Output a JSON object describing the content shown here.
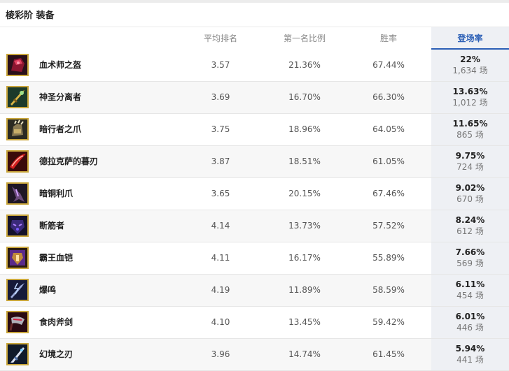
{
  "section_title": "棱彩阶 装备",
  "columns": {
    "avg_place": "平均排名",
    "first_rate": "第一名比例",
    "win_rate": "胜率",
    "pick_rate": "登场率"
  },
  "colors": {
    "accent": "#2b5fb6",
    "icon_border": "#c8a53b",
    "highlight_column_bg": "#eef0f4"
  },
  "items": [
    {
      "name": "血术师之盔",
      "icon": "crimson-helm-icon",
      "avg": "3.57",
      "first": "21.36%",
      "win": "67.44%",
      "pick": "22%",
      "games": "1,634 场"
    },
    {
      "name": "神圣分离者",
      "icon": "golden-sword-icon",
      "avg": "3.69",
      "first": "16.70%",
      "win": "66.30%",
      "pick": "13.63%",
      "games": "1,012 场"
    },
    {
      "name": "暗行者之爪",
      "icon": "claw-gauntlet-icon",
      "avg": "3.75",
      "first": "18.96%",
      "win": "64.05%",
      "pick": "11.65%",
      "games": "865 场"
    },
    {
      "name": "德拉克萨的暮刃",
      "icon": "red-blade-icon",
      "avg": "3.87",
      "first": "18.51%",
      "win": "61.05%",
      "pick": "9.75%",
      "games": "724 场"
    },
    {
      "name": "暗铜利爪",
      "icon": "dark-talon-icon",
      "avg": "3.65",
      "first": "20.15%",
      "win": "67.46%",
      "pick": "9.02%",
      "games": "670 场"
    },
    {
      "name": "断筋者",
      "icon": "purple-mask-icon",
      "avg": "4.14",
      "first": "13.73%",
      "win": "57.52%",
      "pick": "8.24%",
      "games": "612 场"
    },
    {
      "name": "霸王血铠",
      "icon": "purple-armor-icon",
      "avg": "4.11",
      "first": "16.17%",
      "win": "55.89%",
      "pick": "7.66%",
      "games": "569 场"
    },
    {
      "name": "爆鸣",
      "icon": "lightning-blade-icon",
      "avg": "4.19",
      "first": "11.89%",
      "win": "58.59%",
      "pick": "6.11%",
      "games": "454 场"
    },
    {
      "name": "食肉斧剑",
      "icon": "cleaver-icon",
      "avg": "4.10",
      "first": "13.45%",
      "win": "59.42%",
      "pick": "6.01%",
      "games": "446 场"
    },
    {
      "name": "幻境之刃",
      "icon": "mirage-blade-icon",
      "avg": "3.96",
      "first": "14.74%",
      "win": "61.45%",
      "pick": "5.94%",
      "games": "441 场"
    }
  ]
}
